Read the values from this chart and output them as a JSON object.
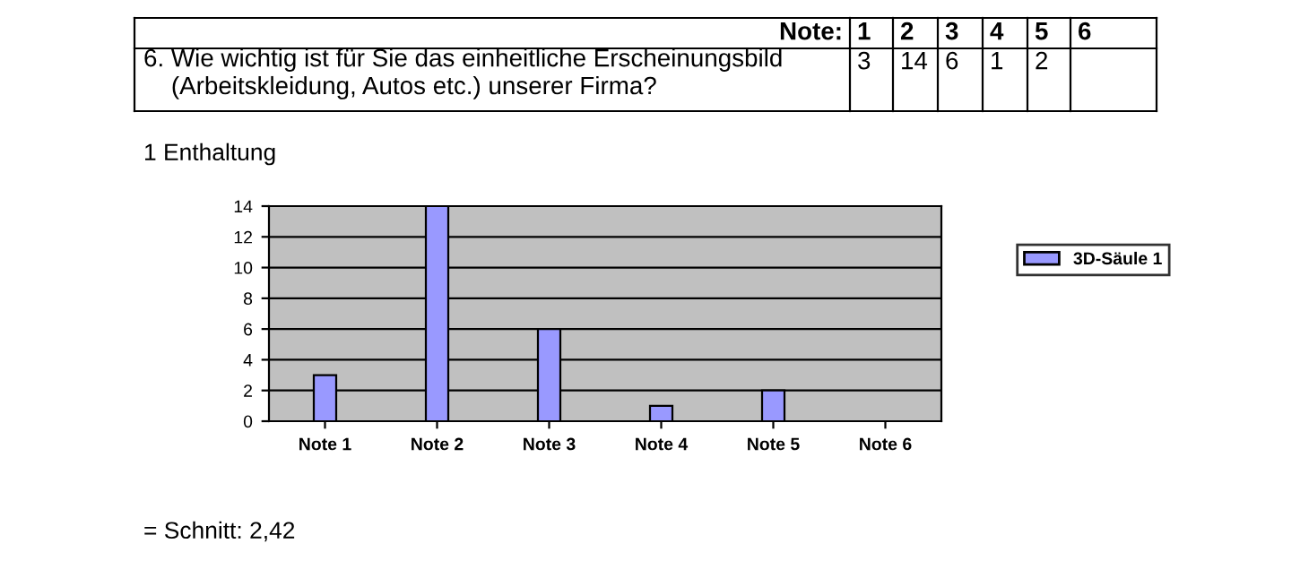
{
  "chart_data": {
    "type": "bar",
    "title": "6. Wie wichtig ist für Sie das einheitliche Erscheinungsbild\n    (Arbeitskleidung, Autos etc.) unserer Firma?",
    "categories": [
      "Note 1",
      "Note 2",
      "Note 3",
      "Note 4",
      "Note 5",
      "Note 6"
    ],
    "series": [
      {
        "name": "3D-Säule 1",
        "color": "#9999ff",
        "values": [
          3,
          14,
          6,
          1,
          2,
          null
        ]
      }
    ],
    "value_labels": [
      "3",
      "14",
      "6",
      "1",
      "2",
      null
    ],
    "annotations": [
      "Note:",
      "1",
      "2",
      "3",
      "4",
      "5",
      "6",
      "1 Enthaltung",
      "= Schnitt: 2,42"
    ],
    "ylim": [
      0,
      14
    ],
    "yticks": [
      0,
      2,
      4,
      6,
      8,
      10,
      12,
      14
    ],
    "grid": "y",
    "legend": "right"
  }
}
